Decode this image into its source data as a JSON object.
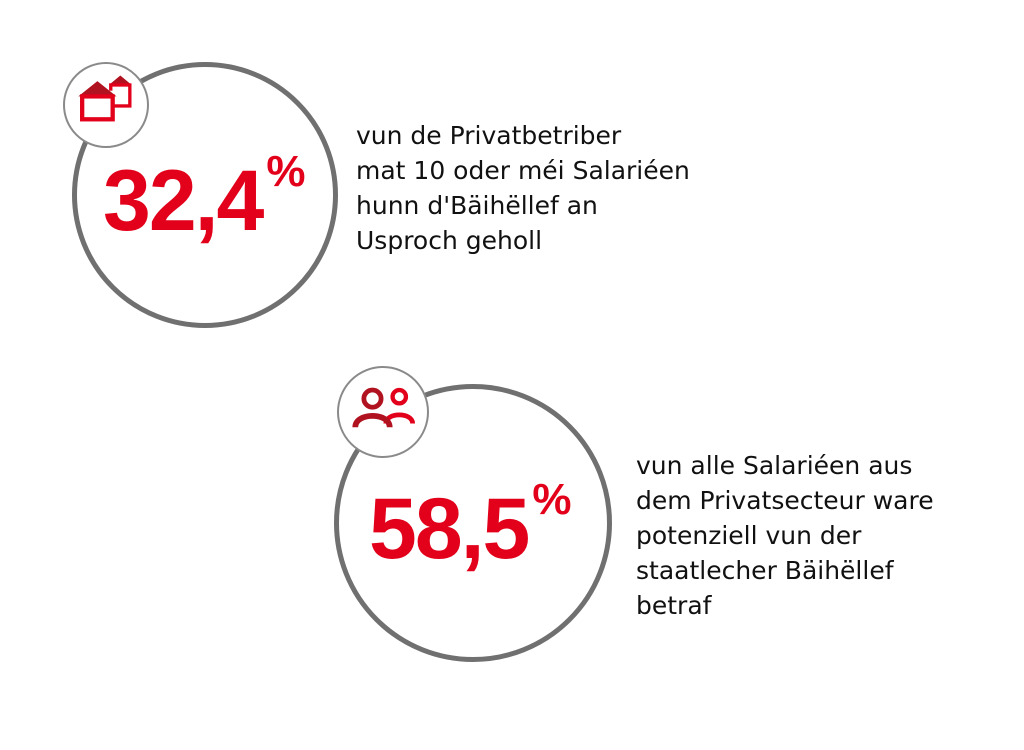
{
  "colors": {
    "accent": "#e2001a",
    "accent_dark": "#b1121f",
    "ring": "#707070",
    "text": "#111111"
  },
  "stats": [
    {
      "icon": "house-icon",
      "number": "32,4",
      "percent_sign": "%",
      "value_percent": 32.4,
      "lines": [
        "vun de Privatbetriber",
        "mat 10 oder méi Salariéen",
        "hunn d'Bäihëllef an",
        "Usproch geholl"
      ]
    },
    {
      "icon": "people-icon",
      "number": "58,5",
      "percent_sign": "%",
      "value_percent": 58.5,
      "lines": [
        "vun alle Salariéen aus",
        "dem Privatsecteur ware",
        "potenziell vun der",
        "staatlecher Bäihëllef",
        "betraf"
      ]
    }
  ]
}
